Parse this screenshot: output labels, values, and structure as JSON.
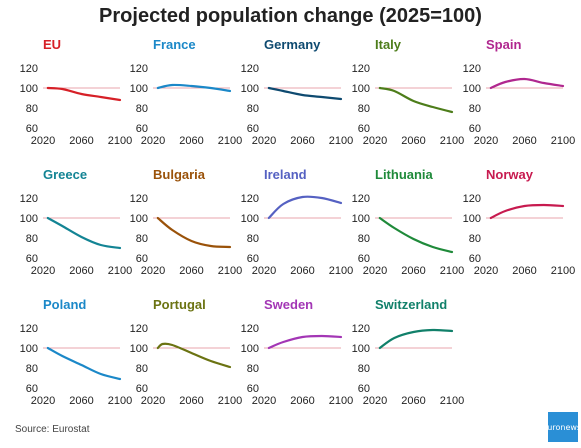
{
  "title": "Projected population change (2025=100)",
  "source": "Source: Eurostat",
  "logo_text": "euro news.",
  "colors": {
    "reference_line": "#e8a6ad",
    "axis_text": "#222222"
  },
  "chart_data": [
    {
      "type": "line",
      "title": "EU",
      "color": "#d62027",
      "x": [
        2025,
        2040,
        2060,
        2080,
        2100
      ],
      "y": [
        100,
        99,
        94,
        91,
        88
      ],
      "xticks": [
        2020,
        2060,
        2100
      ],
      "yticks": [
        60,
        80,
        100,
        120
      ],
      "xlim": [
        2020,
        2100
      ],
      "ylim": [
        60,
        125
      ],
      "reference": 100
    },
    {
      "type": "line",
      "title": "France",
      "color": "#1b88c8",
      "x": [
        2025,
        2040,
        2060,
        2080,
        2100
      ],
      "y": [
        100,
        103,
        102,
        100,
        97
      ],
      "xticks": [
        2020,
        2060,
        2100
      ],
      "yticks": [
        60,
        80,
        100,
        120
      ],
      "xlim": [
        2020,
        2100
      ],
      "ylim": [
        60,
        125
      ],
      "reference": 100
    },
    {
      "type": "line",
      "title": "Germany",
      "color": "#0e4a70",
      "x": [
        2025,
        2040,
        2060,
        2080,
        2100
      ],
      "y": [
        100,
        97,
        93,
        91,
        89
      ],
      "xticks": [
        2020,
        2060,
        2100
      ],
      "yticks": [
        60,
        80,
        100,
        120
      ],
      "xlim": [
        2020,
        2100
      ],
      "ylim": [
        60,
        125
      ],
      "reference": 100
    },
    {
      "type": "line",
      "title": "Italy",
      "color": "#4d7d1a",
      "x": [
        2025,
        2040,
        2060,
        2080,
        2100
      ],
      "y": [
        100,
        97,
        87,
        81,
        76
      ],
      "xticks": [
        2020,
        2060,
        2100
      ],
      "yticks": [
        60,
        80,
        100,
        120
      ],
      "xlim": [
        2020,
        2100
      ],
      "ylim": [
        60,
        125
      ],
      "reference": 100
    },
    {
      "type": "line",
      "title": "Spain",
      "color": "#b0278f",
      "x": [
        2025,
        2040,
        2060,
        2080,
        2100
      ],
      "y": [
        100,
        106,
        109,
        105,
        102
      ],
      "xticks": [
        2020,
        2060,
        2100
      ],
      "yticks": [
        60,
        80,
        100,
        120
      ],
      "xlim": [
        2020,
        2100
      ],
      "ylim": [
        60,
        125
      ],
      "reference": 100
    },
    {
      "type": "line",
      "title": "Greece",
      "color": "#138494",
      "x": [
        2025,
        2040,
        2060,
        2080,
        2100
      ],
      "y": [
        100,
        92,
        81,
        73,
        70
      ],
      "xticks": [
        2020,
        2060,
        2100
      ],
      "yticks": [
        60,
        80,
        100,
        120
      ],
      "xlim": [
        2020,
        2100
      ],
      "ylim": [
        60,
        125
      ],
      "reference": 100
    },
    {
      "type": "line",
      "title": "Bulgaria",
      "color": "#9a5209",
      "x": [
        2025,
        2040,
        2060,
        2080,
        2100
      ],
      "y": [
        100,
        88,
        77,
        72,
        71
      ],
      "xticks": [
        2020,
        2060,
        2100
      ],
      "yticks": [
        60,
        80,
        100,
        120
      ],
      "xlim": [
        2020,
        2100
      ],
      "ylim": [
        60,
        125
      ],
      "reference": 100
    },
    {
      "type": "line",
      "title": "Ireland",
      "color": "#5561c2",
      "x": [
        2025,
        2040,
        2060,
        2080,
        2100
      ],
      "y": [
        100,
        114,
        121,
        120,
        115
      ],
      "xticks": [
        2020,
        2060,
        2100
      ],
      "yticks": [
        60,
        80,
        100,
        120
      ],
      "xlim": [
        2020,
        2100
      ],
      "ylim": [
        60,
        125
      ],
      "reference": 100
    },
    {
      "type": "line",
      "title": "Lithuania",
      "color": "#1f8a3a",
      "x": [
        2025,
        2040,
        2060,
        2080,
        2100
      ],
      "y": [
        100,
        90,
        79,
        71,
        66
      ],
      "xticks": [
        2020,
        2060,
        2100
      ],
      "yticks": [
        60,
        80,
        100,
        120
      ],
      "xlim": [
        2020,
        2100
      ],
      "ylim": [
        60,
        125
      ],
      "reference": 100
    },
    {
      "type": "line",
      "title": "Norway",
      "color": "#c71a4f",
      "x": [
        2025,
        2040,
        2060,
        2080,
        2100
      ],
      "y": [
        100,
        107,
        112,
        113,
        112
      ],
      "xticks": [
        2020,
        2060,
        2100
      ],
      "yticks": [
        60,
        80,
        100,
        120
      ],
      "xlim": [
        2020,
        2100
      ],
      "ylim": [
        60,
        125
      ],
      "reference": 100
    },
    {
      "type": "line",
      "title": "Poland",
      "color": "#1b88c8",
      "x": [
        2025,
        2040,
        2060,
        2080,
        2100
      ],
      "y": [
        100,
        92,
        83,
        74,
        69
      ],
      "xticks": [
        2020,
        2060,
        2100
      ],
      "yticks": [
        60,
        80,
        100,
        120
      ],
      "xlim": [
        2020,
        2100
      ],
      "ylim": [
        60,
        125
      ],
      "reference": 100
    },
    {
      "type": "line",
      "title": "Portugal",
      "color": "#6b7312",
      "x": [
        2025,
        2030,
        2040,
        2060,
        2080,
        2100
      ],
      "y": [
        100,
        104,
        103,
        95,
        87,
        81
      ],
      "xticks": [
        2020,
        2060,
        2100
      ],
      "yticks": [
        60,
        80,
        100,
        120
      ],
      "xlim": [
        2020,
        2100
      ],
      "ylim": [
        60,
        125
      ],
      "reference": 100
    },
    {
      "type": "line",
      "title": "Sweden",
      "color": "#a336b5",
      "x": [
        2025,
        2040,
        2060,
        2080,
        2100
      ],
      "y": [
        100,
        106,
        111,
        112,
        111
      ],
      "xticks": [
        2020,
        2060,
        2100
      ],
      "yticks": [
        60,
        80,
        100,
        120
      ],
      "xlim": [
        2020,
        2100
      ],
      "ylim": [
        60,
        125
      ],
      "reference": 100
    },
    {
      "type": "line",
      "title": "Switzerland",
      "color": "#11806a",
      "x": [
        2025,
        2040,
        2060,
        2080,
        2100
      ],
      "y": [
        100,
        110,
        116,
        118,
        117
      ],
      "xticks": [
        2020,
        2060,
        2100
      ],
      "yticks": [
        60,
        80,
        100,
        120
      ],
      "xlim": [
        2020,
        2100
      ],
      "ylim": [
        60,
        125
      ],
      "reference": 100
    }
  ]
}
